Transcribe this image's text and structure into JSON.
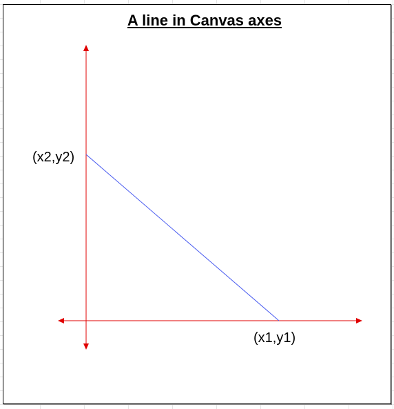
{
  "title": "A line in Canvas axes",
  "points": {
    "p1_label": "(x1,y1)",
    "p2_label": "(x2,y2)"
  },
  "colors": {
    "axis": "#e00000",
    "line": "#4a5cf0",
    "frame": "#000000",
    "grid": "#e4e4e4"
  }
}
